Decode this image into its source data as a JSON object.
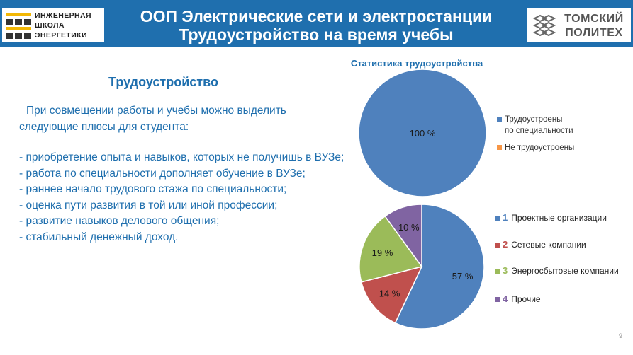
{
  "header": {
    "title_line1": "ООП Электрические сети и электростанции",
    "title_line2": "Трудоустройство на время учебы",
    "left_logo": {
      "line1": "ИНЖЕНЕРНАЯ",
      "line2": "ШКОЛА",
      "line3": "ЭНЕРГЕТИКИ"
    },
    "right_logo": {
      "line1": "ТОМСКИЙ",
      "line2": "ПОЛИТЕХ"
    }
  },
  "main": {
    "heading": "Трудоустройство",
    "intro_line1": "При совмещении работы и учебы можно выделить",
    "intro_line2": "следующие плюсы для студента:",
    "bullets": [
      "- приобретение опыта и навыков, которых не получишь в ВУЗе;",
      "- работа по специальности дополняет обучение в ВУЗе;",
      "- раннее начало трудового стажа по специальности;",
      "- оценка пути развития в той или иной профессии;",
      "- развитие навыков делового общения;",
      "- стабильный денежный доход."
    ]
  },
  "page_number": "9",
  "colors": {
    "header_bg": "#1f6fae",
    "text_blue": "#1f6fae",
    "blue": "#4f81bd",
    "red": "#c0504d",
    "green": "#9bbb59",
    "purple": "#8064a2",
    "orange": "#f79646"
  },
  "chart_data": [
    {
      "type": "pie",
      "title": "Статистика трудоустройства",
      "categories": [
        "Трудоустроены по специальности",
        "Не трудоустроены"
      ],
      "legend_lines": [
        [
          "Трудоустроены",
          "по специальности"
        ],
        [
          "Не трудоустроены"
        ]
      ],
      "values": [
        100,
        0
      ],
      "data_labels": [
        "100 %",
        ""
      ],
      "colors": [
        "#4f81bd",
        "#f79646"
      ],
      "legend": "right"
    },
    {
      "type": "pie",
      "title": "",
      "categories": [
        "Проектные организации",
        "Сетевые компании",
        "Энергосбытовые компании",
        "Прочие"
      ],
      "legend_numbers": [
        "1",
        "2",
        "3",
        "4"
      ],
      "values": [
        57,
        14,
        19,
        10
      ],
      "data_labels": [
        "57 %",
        "14 %",
        "19 %",
        "10 %"
      ],
      "colors": [
        "#4f81bd",
        "#c0504d",
        "#9bbb59",
        "#8064a2"
      ],
      "legend": "right"
    }
  ]
}
